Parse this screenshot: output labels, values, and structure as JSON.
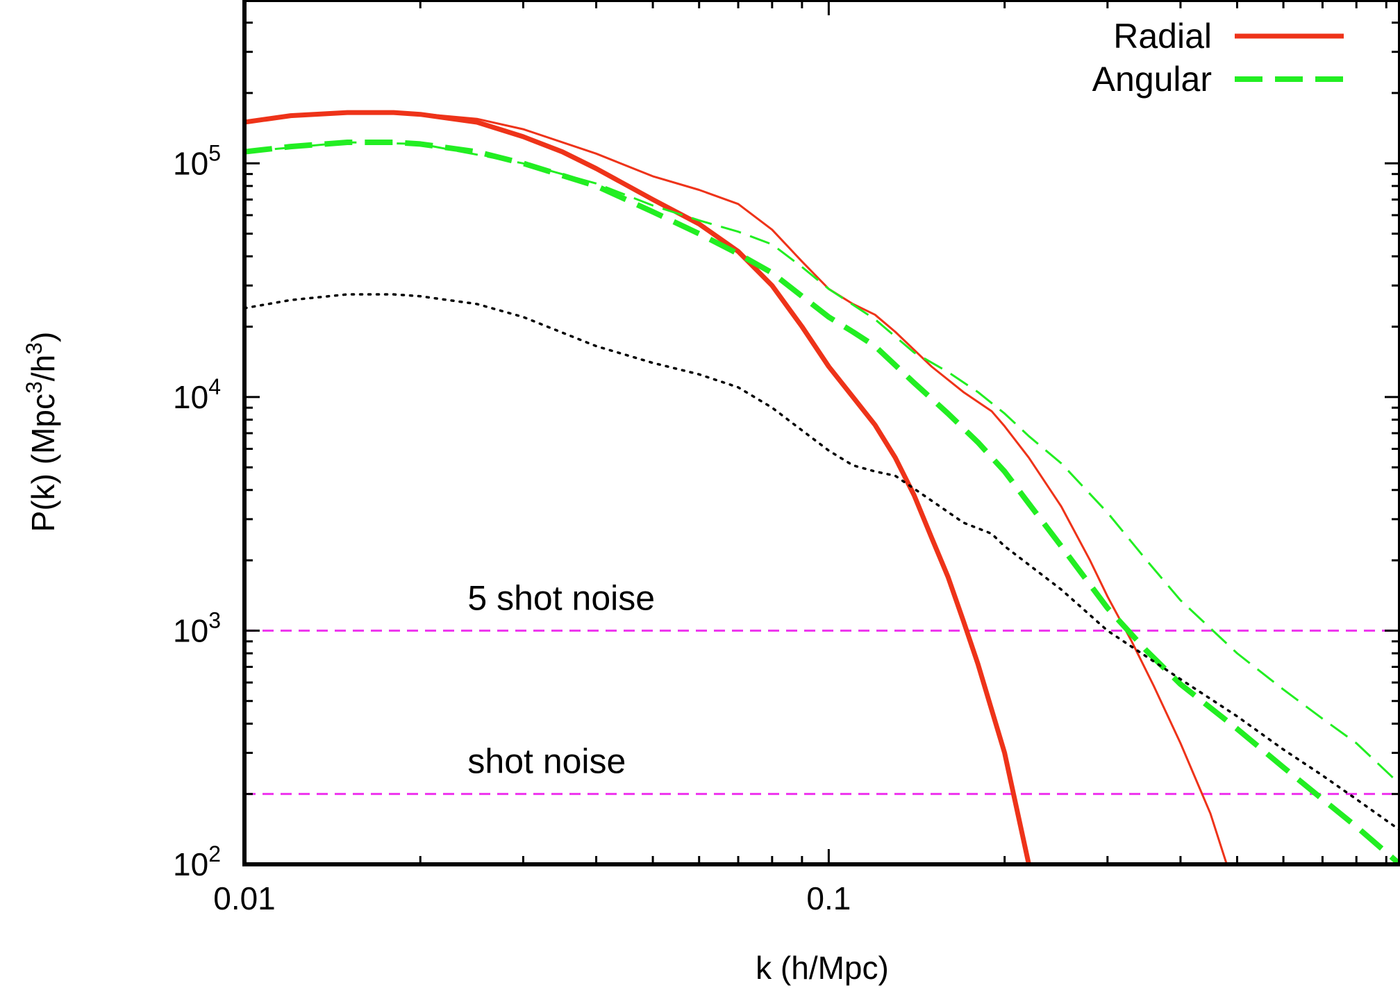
{
  "chart_data": {
    "type": "line",
    "xlabel": "k (h/Mpc)",
    "ylabel": {
      "base": "P(k) (Mpc",
      "sup1": "3",
      "mid": "/h",
      "sup2": "3",
      "end": ")"
    },
    "xscale": "log",
    "yscale": "log",
    "xlim": [
      0.01,
      0.95
    ],
    "ylim": [
      100,
      500000
    ],
    "grid": false,
    "legend": "top-right",
    "x_ticks": [
      {
        "value": 0.01,
        "label": "0.01"
      },
      {
        "value": 0.1,
        "label": "0.1"
      }
    ],
    "y_ticks": [
      {
        "value": 100,
        "base": "10",
        "exp": "2"
      },
      {
        "value": 1000,
        "base": "10",
        "exp": "3"
      },
      {
        "value": 10000,
        "base": "10",
        "exp": "4"
      },
      {
        "value": 100000,
        "base": "10",
        "exp": "5"
      }
    ],
    "colors": {
      "radial": "#ee3319",
      "angular": "#22ee22",
      "reference": "#000000",
      "noise": "#ee33ee"
    },
    "series": [
      {
        "id": "radial-thick",
        "name": "Radial",
        "color": "#ee3319",
        "style": "solid-thick",
        "x": [
          0.01,
          0.012,
          0.015,
          0.018,
          0.02,
          0.025,
          0.03,
          0.035,
          0.04,
          0.05,
          0.06,
          0.07,
          0.08,
          0.09,
          0.1,
          0.11,
          0.12,
          0.13,
          0.14,
          0.15,
          0.16,
          0.17,
          0.18,
          0.2,
          0.22
        ],
        "y": [
          150000,
          160000,
          165000,
          165000,
          162000,
          150000,
          130000,
          112000,
          95000,
          70000,
          55000,
          42000,
          30000,
          20000,
          13500,
          10000,
          7600,
          5500,
          3800,
          2500,
          1700,
          1100,
          720,
          300,
          100
        ]
      },
      {
        "id": "radial-thin",
        "name": "",
        "color": "#ee3319",
        "style": "solid-thin",
        "x": [
          0.01,
          0.012,
          0.015,
          0.018,
          0.02,
          0.025,
          0.03,
          0.04,
          0.05,
          0.06,
          0.07,
          0.08,
          0.09,
          0.1,
          0.11,
          0.12,
          0.13,
          0.15,
          0.17,
          0.19,
          0.2,
          0.22,
          0.25,
          0.28,
          0.3,
          0.33,
          0.36,
          0.4,
          0.45,
          0.48
        ],
        "y": [
          150000,
          160000,
          165000,
          165000,
          163000,
          155000,
          140000,
          110000,
          88000,
          77000,
          67000,
          52000,
          38000,
          29000,
          25000,
          22500,
          19000,
          13500,
          10500,
          8700,
          7500,
          5500,
          3400,
          2000,
          1400,
          900,
          580,
          330,
          165,
          100
        ]
      },
      {
        "id": "angular-thick",
        "name": "Angular",
        "color": "#22ee22",
        "style": "dashed-thick",
        "x": [
          0.01,
          0.012,
          0.015,
          0.018,
          0.02,
          0.025,
          0.03,
          0.04,
          0.05,
          0.06,
          0.07,
          0.08,
          0.09,
          0.1,
          0.11,
          0.12,
          0.14,
          0.16,
          0.18,
          0.2,
          0.22,
          0.25,
          0.3,
          0.35,
          0.4,
          0.5,
          0.6,
          0.7,
          0.8,
          0.95
        ],
        "y": [
          112000,
          118000,
          123000,
          123000,
          121000,
          112000,
          100000,
          80000,
          62000,
          50000,
          41000,
          34000,
          27000,
          22000,
          19000,
          16500,
          11500,
          8500,
          6400,
          4800,
          3500,
          2300,
          1250,
          820,
          590,
          380,
          260,
          190,
          145,
          100
        ]
      },
      {
        "id": "angular-thin",
        "name": "",
        "color": "#22ee22",
        "style": "dashed-thin",
        "x": [
          0.01,
          0.015,
          0.02,
          0.03,
          0.04,
          0.05,
          0.06,
          0.07,
          0.08,
          0.09,
          0.1,
          0.12,
          0.14,
          0.16,
          0.18,
          0.2,
          0.22,
          0.25,
          0.3,
          0.35,
          0.4,
          0.5,
          0.6,
          0.7,
          0.8,
          0.95
        ],
        "y": [
          112000,
          123000,
          121000,
          100000,
          82000,
          66000,
          57000,
          51000,
          45000,
          36000,
          29000,
          21500,
          15500,
          12800,
          10500,
          8500,
          6800,
          5200,
          3200,
          2000,
          1350,
          800,
          560,
          420,
          330,
          220
        ]
      },
      {
        "id": "reference-dotted",
        "name": "",
        "color": "#000000",
        "style": "dotted",
        "x": [
          0.01,
          0.012,
          0.015,
          0.018,
          0.02,
          0.025,
          0.03,
          0.04,
          0.05,
          0.06,
          0.07,
          0.08,
          0.09,
          0.1,
          0.11,
          0.12,
          0.13,
          0.15,
          0.17,
          0.19,
          0.2,
          0.25,
          0.3,
          0.4,
          0.5,
          0.6,
          0.7,
          0.8,
          0.95
        ],
        "y": [
          24000,
          26000,
          27500,
          27500,
          27000,
          25000,
          22000,
          16500,
          14000,
          12500,
          11000,
          9000,
          7200,
          5900,
          5100,
          4800,
          4600,
          3600,
          2900,
          2600,
          2300,
          1500,
          1000,
          620,
          430,
          310,
          240,
          190,
          140
        ]
      }
    ],
    "hlines": [
      {
        "id": "five-shot-noise",
        "value": 1000,
        "label": "5 shot noise",
        "label_x": 0.03
      },
      {
        "id": "shot-noise",
        "value": 200,
        "label": "shot noise",
        "label_x": 0.03
      }
    ]
  }
}
